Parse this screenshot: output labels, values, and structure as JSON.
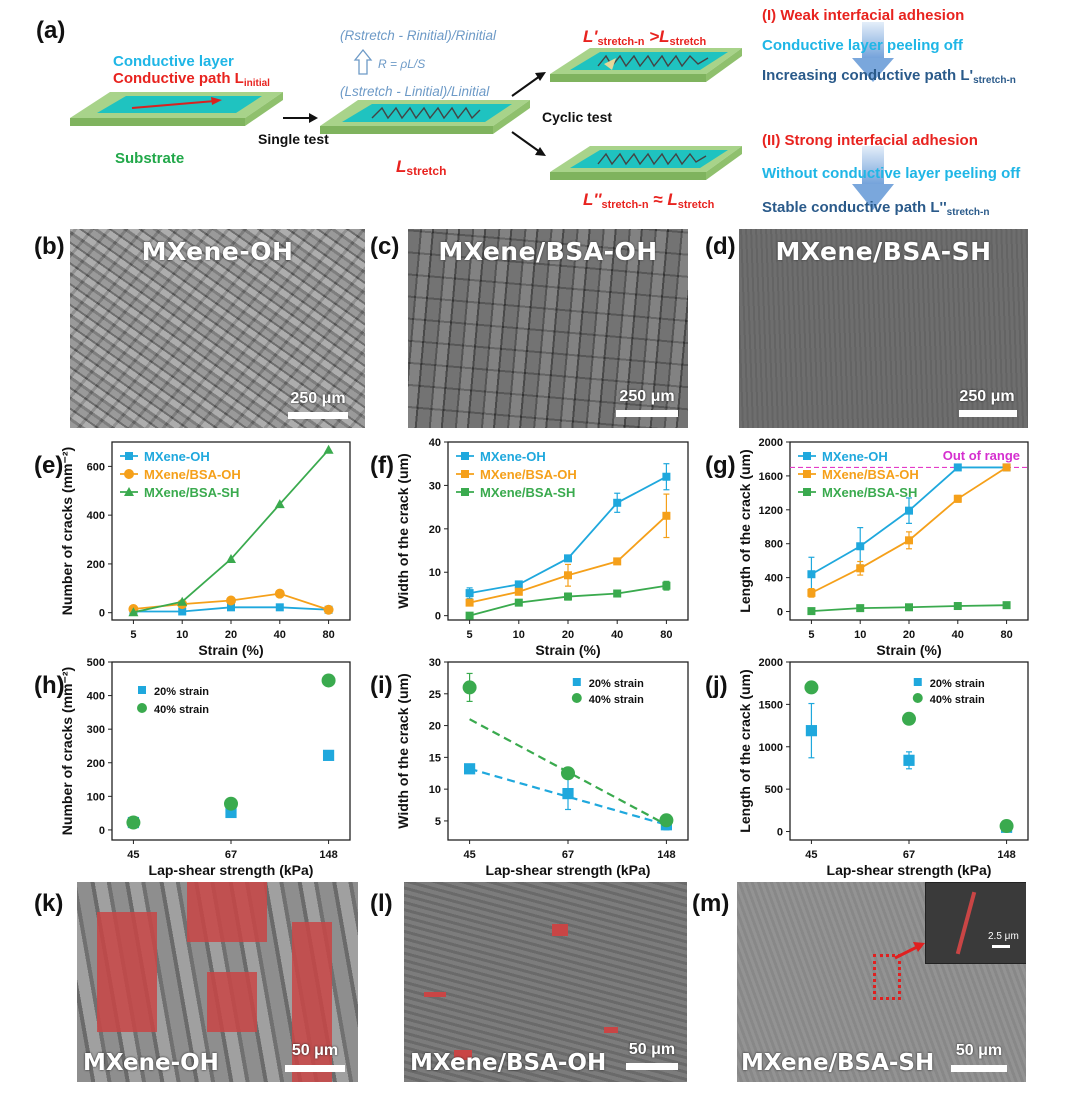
{
  "schematic": {
    "panel_label": "(a)",
    "conductive_layer": "Conductive layer",
    "conductive_path": "Conductive path L",
    "conductive_path_sub": "initial",
    "substrate": "Substrate",
    "single_test": "Single test",
    "cyclic_test": "Cyclic test",
    "l_stretch": "L",
    "l_stretch_sub": "stretch",
    "resistance_ratio": "(Rstretch - Rinitial)/Rinitial",
    "resistance_formula": "R = ρL/S",
    "length_ratio": "(Lstretch - Linitial)/Linitial",
    "weak_adhesion": "(I)   Weak interfacial adhesion",
    "peeling_off": "Conductive layer peeling off",
    "increasing_path": "Increasing conductive path L'",
    "increasing_path_sub": "stretch-n",
    "strong_adhesion": "(II)  Strong interfacial adhesion",
    "without_peeling": "Without conductive layer peeling off",
    "stable_path": "Stable conductive path L''",
    "stable_path_sub": "stretch-n",
    "cond1_main": "L'",
    "cond1_sub": "stretch-n",
    "cond1_rel": " >L",
    "cond1_sub2": "stretch",
    "cond2_main": "L''",
    "cond2_sub": "stretch-n",
    "cond2_rel": " ≈ L",
    "cond2_sub2": "stretch",
    "colors": {
      "cyan": "#1fb6e6",
      "red": "#e8231f",
      "green": "#22a84a",
      "navy": "#2a5a8a",
      "steel": "#6d9ac7"
    }
  },
  "sem_top": [
    {
      "label": "(b)",
      "title": "MXene-OH",
      "scale": "250 μm"
    },
    {
      "label": "(c)",
      "title": "MXene/BSA-OH",
      "scale": "250 μm"
    },
    {
      "label": "(d)",
      "title": "MXene/BSA-SH",
      "scale": "250 μm"
    }
  ],
  "sem_bottom": [
    {
      "label": "(k)",
      "name": "MXene-OH",
      "scale": "50 μm"
    },
    {
      "label": "(l)",
      "name": "MXene/BSA-OH",
      "scale": "50 μm"
    },
    {
      "label": "(m)",
      "name": "MXene/BSA-SH",
      "scale": "50 μm",
      "inset_scale": "2.5 μm"
    }
  ],
  "chart_data": [
    {
      "panel": "(e)",
      "type": "line",
      "categories": [
        "5",
        "10",
        "20",
        "40",
        "80"
      ],
      "xlabel": "Strain (%)",
      "ylabel": "Number of cracks (mm⁻²)",
      "ylim": [
        -30,
        700
      ],
      "yticks": [
        0,
        200,
        400,
        600
      ],
      "legend": "top-left",
      "series": [
        {
          "name": "MXene-OH",
          "color": "#1fa8dd",
          "marker": "square",
          "values": [
            5,
            5,
            22,
            22,
            12
          ]
        },
        {
          "name": "MXene/BSA-OH",
          "color": "#f5a01a",
          "marker": "circle",
          "values": [
            15,
            35,
            50,
            78,
            12
          ]
        },
        {
          "name": "MXene/BSA-SH",
          "color": "#3aaa4e",
          "marker": "triangle",
          "values": [
            2,
            45,
            220,
            445,
            668
          ]
        }
      ]
    },
    {
      "panel": "(f)",
      "type": "line",
      "categories": [
        "5",
        "10",
        "20",
        "40",
        "80"
      ],
      "xlabel": "Strain (%)",
      "ylabel": "Width of the crack (um)",
      "ylim": [
        -1,
        40
      ],
      "yticks": [
        0,
        10,
        20,
        30,
        40
      ],
      "legend": "top-left",
      "series": [
        {
          "name": "MXene-OH",
          "color": "#1fa8dd",
          "marker": "square",
          "values": [
            5.2,
            7.2,
            13.2,
            26,
            32
          ],
          "errors": [
            1.2,
            0.4,
            0.6,
            2.2,
            3
          ]
        },
        {
          "name": "MXene/BSA-OH",
          "color": "#f5a01a",
          "marker": "square",
          "values": [
            3,
            5.5,
            9.3,
            12.5,
            23
          ],
          "errors": [
            0.4,
            0.4,
            2.5,
            0.5,
            5
          ]
        },
        {
          "name": "MXene/BSA-SH",
          "color": "#3aaa4e",
          "marker": "square",
          "values": [
            0,
            3,
            4.4,
            5.1,
            6.9
          ],
          "errors": [
            0.2,
            0.4,
            0.8,
            0.3,
            1
          ]
        }
      ]
    },
    {
      "panel": "(g)",
      "type": "line",
      "categories": [
        "5",
        "10",
        "20",
        "40",
        "80"
      ],
      "xlabel": "Strain (%)",
      "ylabel": "Length of the crack (um)",
      "ylim": [
        -100,
        2000
      ],
      "yticks": [
        0,
        400,
        800,
        1200,
        1600,
        2000
      ],
      "legend": "top-left",
      "annotation": "Out of range",
      "threshold": 1700,
      "series": [
        {
          "name": "MXene-OH",
          "color": "#1fa8dd",
          "marker": "square",
          "values": [
            440,
            770,
            1190,
            1700,
            1700
          ],
          "errors": [
            200,
            220,
            150,
            0,
            0
          ]
        },
        {
          "name": "MXene/BSA-OH",
          "color": "#f5a01a",
          "marker": "square",
          "values": [
            220,
            510,
            840,
            1330,
            1700
          ],
          "errors": [
            50,
            80,
            100,
            40,
            0
          ]
        },
        {
          "name": "MXene/BSA-SH",
          "color": "#3aaa4e",
          "marker": "square",
          "values": [
            5,
            40,
            50,
            65,
            75
          ],
          "errors": [
            5,
            10,
            10,
            10,
            10
          ]
        }
      ]
    },
    {
      "panel": "(h)",
      "type": "scatter",
      "categories": [
        "45",
        "67",
        "148"
      ],
      "xlabel": "Lap-shear strength (kPa)",
      "ylabel": "Number of cracks (mm⁻²)",
      "ylim": [
        -30,
        500
      ],
      "yticks": [
        0,
        100,
        200,
        300,
        400,
        500
      ],
      "legend": "top-left",
      "series": [
        {
          "name": "20% strain",
          "color": "#1fa8dd",
          "marker": "square",
          "values": [
            22,
            52,
            222
          ]
        },
        {
          "name": "40% strain",
          "color": "#3aaa4e",
          "marker": "circle",
          "values": [
            22,
            78,
            445
          ]
        }
      ]
    },
    {
      "panel": "(i)",
      "type": "scatter",
      "categories": [
        "45",
        "67",
        "148"
      ],
      "xlabel": "Lap-shear strength (kPa)",
      "ylabel": "Width of the crack (um)",
      "ylim": [
        2,
        30
      ],
      "yticks": [
        5,
        10,
        15,
        20,
        25,
        30
      ],
      "legend": "top-right",
      "series": [
        {
          "name": "20% strain",
          "color": "#1fa8dd",
          "marker": "square",
          "values": [
            13.2,
            9.3,
            4.4
          ],
          "errors": [
            0.6,
            2.5,
            0.8
          ],
          "trend": [
            13.2,
            4.4
          ]
        },
        {
          "name": "40% strain",
          "color": "#3aaa4e",
          "marker": "circle",
          "values": [
            26,
            12.5,
            5.1
          ],
          "errors": [
            2.2,
            0.5,
            0.3
          ],
          "trend": [
            21,
            4.4
          ]
        }
      ]
    },
    {
      "panel": "(j)",
      "type": "scatter",
      "categories": [
        "45",
        "67",
        "148"
      ],
      "xlabel": "Lap-shear strength (kPa)",
      "ylabel": "Length of the crack (um)",
      "ylim": [
        -100,
        2000
      ],
      "yticks": [
        0,
        500,
        1000,
        1500,
        2000
      ],
      "legend": "top-right",
      "series": [
        {
          "name": "20% strain",
          "color": "#1fa8dd",
          "marker": "square",
          "values": [
            1190,
            840,
            50
          ],
          "errors": [
            320,
            100,
            10
          ]
        },
        {
          "name": "40% strain",
          "color": "#3aaa4e",
          "marker": "circle",
          "values": [
            1700,
            1330,
            65
          ]
        }
      ]
    }
  ]
}
